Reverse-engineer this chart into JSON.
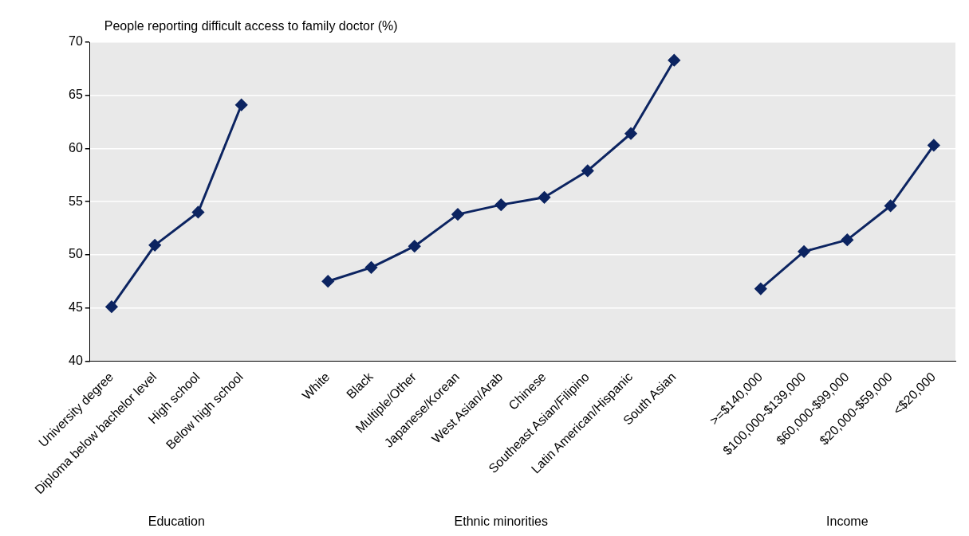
{
  "chart_data": {
    "type": "line",
    "ylabel": "People reporting difficult access to family doctor (%)",
    "categories": [
      "University degree",
      "Diploma below bachelor level",
      "High school",
      "Below high school",
      null,
      "White",
      "Black",
      "Multiple/Other",
      "Japanese/Korean",
      "West Asian/Arab",
      "Chinese",
      "Southeast Asian/Filipino",
      "Latin American/Hispanic",
      "South Asian",
      null,
      ">=$140,000",
      "$100,000-$139,000",
      "$60,000-$99,000",
      "$20,000-$59,000",
      "<$20,000"
    ],
    "series": [
      {
        "color": "#0c2461",
        "values": [
          45.1,
          50.9,
          54.0,
          64.1,
          null,
          47.5,
          48.8,
          50.8,
          53.8,
          54.7,
          55.4,
          57.9,
          61.4,
          68.3,
          null,
          46.8,
          50.3,
          51.4,
          54.6,
          60.3
        ]
      }
    ],
    "ylim": [
      40,
      70
    ],
    "yticks": [
      40,
      45,
      50,
      55,
      60,
      65,
      70
    ],
    "grid": "y",
    "legend": false,
    "marker": "diamond",
    "line_style": "solid",
    "annotations": [
      "Education",
      "Ethnic minorities",
      "Income"
    ]
  }
}
